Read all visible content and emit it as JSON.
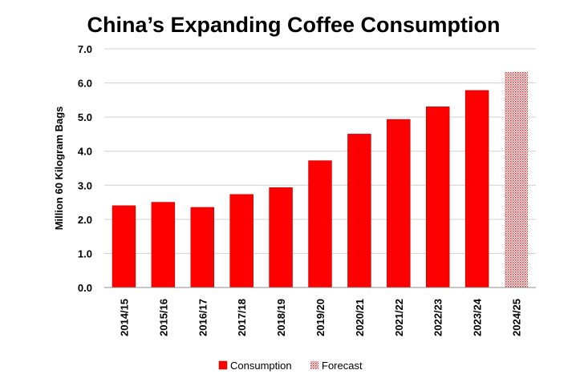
{
  "chart_data": {
    "type": "bar",
    "title": "China’s Expanding Coffee Consumption",
    "ylabel": "Million 60 Kilogram Bags",
    "xlabel": "",
    "ylim": [
      0,
      7
    ],
    "yticks": [
      "0.0",
      "1.0",
      "2.0",
      "3.0",
      "4.0",
      "5.0",
      "6.0",
      "7.0"
    ],
    "categories": [
      "2014/15",
      "2015/16",
      "2016/17",
      "2017/18",
      "2018/19",
      "2019/20",
      "2020/21",
      "2021/22",
      "2022/23",
      "2023/24",
      "2024/25"
    ],
    "series": [
      {
        "name": "Consumption",
        "values": [
          2.4,
          2.5,
          2.35,
          2.73,
          2.93,
          3.72,
          4.5,
          4.93,
          5.3,
          5.78,
          null
        ]
      },
      {
        "name": "Forecast",
        "values": [
          null,
          null,
          null,
          null,
          null,
          null,
          null,
          null,
          null,
          null,
          6.32
        ]
      }
    ],
    "grid": true,
    "legend_position": "bottom",
    "colors": {
      "consumption": "#ff0000",
      "consumption_edge": "#c00000",
      "forecast_pattern": "#e07070",
      "forecast_bg": "#ffffff"
    }
  }
}
